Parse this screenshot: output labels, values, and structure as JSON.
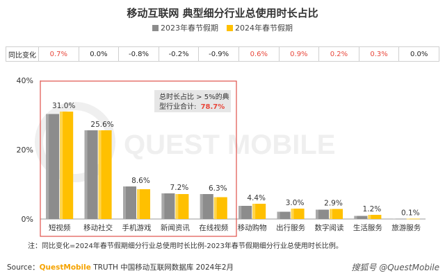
{
  "title": "移动互联网 典型细分行业总使用时长占比",
  "legend": [
    {
      "label": "2023年春节假期",
      "color": "#8c8c8c"
    },
    {
      "label": "2024年春节假期",
      "color": "#ffc000"
    }
  ],
  "change_row": {
    "label": "同比变化",
    "cells": [
      {
        "value": "0.7%",
        "color": "#e8463a"
      },
      {
        "value": "0.0%",
        "color": "#222222"
      },
      {
        "value": "-0.8%",
        "color": "#222222"
      },
      {
        "value": "-0.2%",
        "color": "#222222"
      },
      {
        "value": "-0.9%",
        "color": "#222222"
      },
      {
        "value": "0.6%",
        "color": "#e8463a"
      },
      {
        "value": "0.9%",
        "color": "#e8463a"
      },
      {
        "value": "0.2%",
        "color": "#e8463a"
      },
      {
        "value": "0.3%",
        "color": "#e8463a"
      },
      {
        "value": "0.0%",
        "color": "#222222"
      }
    ]
  },
  "chart_data": {
    "type": "bar",
    "categories": [
      "短视频",
      "移动社交",
      "手机游戏",
      "新闻资讯",
      "在线视频",
      "移动购物",
      "出行服务",
      "数字阅读",
      "生活服务",
      "旅游服务"
    ],
    "series": [
      {
        "name": "2023年春节假期",
        "values": [
          30.3,
          25.6,
          9.4,
          7.4,
          7.2,
          3.8,
          2.1,
          2.7,
          0.9,
          0.1
        ]
      },
      {
        "name": "2024年春节假期",
        "values": [
          31.0,
          25.6,
          8.6,
          7.2,
          6.3,
          4.4,
          3.0,
          2.9,
          1.2,
          0.1
        ]
      }
    ],
    "data_labels": [
      "31.0%",
      "25.6%",
      "8.6%",
      "7.2%",
      "6.3%",
      "4.4%",
      "3.0%",
      "2.9%",
      "1.2%",
      "0.1%"
    ],
    "yticks": [
      "0%",
      "20%",
      "40%"
    ],
    "ylim": [
      0,
      40
    ],
    "legend_position": "top-center",
    "callout": {
      "text_line1": "总时长占比 > 5%的典",
      "text_line2": "型行业合计:",
      "highlight": "78.7%"
    }
  },
  "note": "注：同比变化=2024年春节假期细分行业总使用时长比例-2023年春节假期细分行业总使用时长比例。",
  "source": {
    "prefix": "Source：",
    "brand": "QuestMobile",
    "text": " TRUTH 中国移动互联网数据库 2024年2月"
  },
  "watermark": "搜狐号 @QuestMobile",
  "bg_watermark": "QUEST MOBILE"
}
